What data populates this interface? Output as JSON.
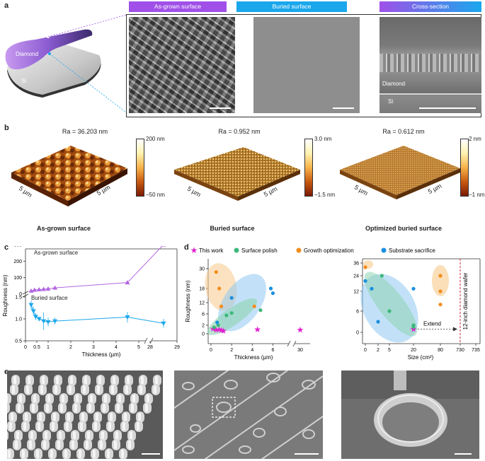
{
  "panel_a": {
    "letter": "a",
    "wafer_top_label": "Diamond",
    "wafer_bottom_label": "Si",
    "tabs": [
      "As-grown surface",
      "Buried surface",
      "Cross-section"
    ],
    "cross_labels": {
      "diamond": "Diamond",
      "si": "Si"
    },
    "colors": {
      "purple": "#a050e8",
      "blue": "#1aa7ec"
    }
  },
  "panel_b": {
    "letter": "b",
    "maps": [
      {
        "ra": "Ra = 36.203 nm",
        "cb_max": "200 nm",
        "cb_min": "−50 nm",
        "caption": "As-grown surface",
        "axis1": "5 µm",
        "axis2": "5 µm"
      },
      {
        "ra": "Ra = 0.952 nm",
        "cb_max": "3.0 nm",
        "cb_min": "−1.5 nm",
        "caption": "Buried surface",
        "axis1": "5 µm",
        "axis2": "5 µm"
      },
      {
        "ra": "Ra = 0.612 nm",
        "cb_max": "2 nm",
        "cb_min": "−1 nm",
        "caption": "Optimized buried surface",
        "axis1": "5 µm",
        "axis2": "5 µm"
      }
    ]
  },
  "panel_c": {
    "letter": "c"
  },
  "panel_d": {
    "letter": "d"
  },
  "panel_e": {
    "letter": "e"
  },
  "chart_data": [
    {
      "type": "line",
      "panel": "c",
      "xlabel": "Thickness (µm)",
      "ylabel": "Roughness (nm)",
      "x_ticks": [
        "0",
        "0.5",
        "1",
        "2",
        "3",
        "4",
        "5",
        "28",
        "29"
      ],
      "y_ticks_top": [
        "100",
        "200",
        "300"
      ],
      "y_ticks_bottom": [
        "0.5",
        "1.0",
        "1.5"
      ],
      "y_break": "0",
      "series": [
        {
          "name": "As-grown surface",
          "color": "#b266e0",
          "x": [
            0.25,
            0.4,
            0.6,
            0.8,
            1.0,
            1.3,
            4.5,
            28.5
          ],
          "y": [
            20,
            25,
            28,
            30,
            32,
            38,
            70,
            300
          ]
        },
        {
          "name": "Buried surface",
          "color": "#1aa7ec",
          "x": [
            0.25,
            0.35,
            0.45,
            0.6,
            0.8,
            1.0,
            1.3,
            4.5,
            28.5
          ],
          "y": [
            1.32,
            1.18,
            1.05,
            1.0,
            0.95,
            0.93,
            0.95,
            1.04,
            0.9
          ],
          "yerr": [
            0.1,
            0.1,
            0.08,
            0.05,
            0.2,
            0.1,
            0.08,
            0.12,
            0.1
          ]
        }
      ]
    },
    {
      "type": "scatter",
      "panel": "d-left",
      "xlabel": "Thickness (µm)",
      "ylabel": "Roughness (nm)",
      "x_ticks": [
        "0",
        "2",
        "4",
        "6",
        "30"
      ],
      "y_ticks": [
        "0",
        "2",
        "6",
        "12",
        "18",
        "30"
      ],
      "legend": [
        "This work",
        "Surface polish",
        "Growth optimization",
        "Substrate sacrifice"
      ],
      "series": [
        {
          "name": "This work",
          "color": "#e020d0",
          "x": [
            0.2,
            0.5,
            0.8,
            1.0,
            1.2,
            4.5,
            28.5
          ],
          "y": [
            1.2,
            0.9,
            1.0,
            0.8,
            0.7,
            1.0,
            0.9
          ]
        },
        {
          "name": "Surface polish",
          "color": "#3db87a",
          "x": [
            0.3,
            0.7,
            1.5,
            2.0,
            4.8
          ],
          "y": [
            1.5,
            2.0,
            5.5,
            6.5,
            8.0
          ]
        },
        {
          "name": "Growth optimization",
          "color": "#f28c1c",
          "x": [
            0.5,
            0.8,
            1.0,
            4.2
          ],
          "y": [
            28,
            18,
            10,
            10
          ]
        },
        {
          "name": "Substrate sacrifice",
          "color": "#1a8fe0",
          "x": [
            2.0,
            5.8,
            6.0,
            0.6
          ],
          "y": [
            14,
            18,
            16,
            3
          ]
        }
      ]
    },
    {
      "type": "scatter",
      "panel": "d-right",
      "xlabel": "Size (cm²)",
      "x_ticks": [
        "0",
        "2",
        "5",
        "20",
        "80",
        "730",
        "735"
      ],
      "y_ticks": [
        "0",
        "6",
        "12",
        "24",
        "36"
      ],
      "annotations": [
        "Extend",
        "12-inch diamond wafer"
      ],
      "series": [
        {
          "name": "This work",
          "color": "#e020d0",
          "x": [
            20
          ],
          "y": [
            0.9
          ]
        },
        {
          "name": "Surface polish",
          "color": "#3db87a",
          "x": [
            3,
            5,
            20,
            20
          ],
          "y": [
            24,
            6,
            1.5,
            2
          ]
        },
        {
          "name": "Growth optimization",
          "color": "#f28c1c",
          "x": [
            0,
            80,
            80,
            80
          ],
          "y": [
            32,
            24,
            12,
            8
          ]
        },
        {
          "name": "Substrate sacrifice",
          "color": "#1a8fe0",
          "x": [
            0,
            1,
            2,
            20
          ],
          "y": [
            20,
            14,
            3,
            14
          ]
        }
      ]
    }
  ]
}
